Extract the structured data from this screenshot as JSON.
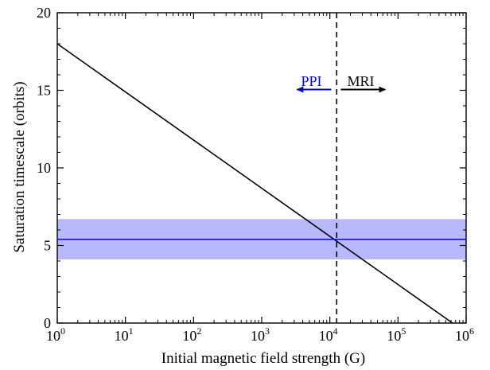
{
  "chart_data": {
    "type": "line",
    "title": "",
    "xlabel": "Initial magnetic field strength (G)",
    "ylabel": "Saturation timescale (orbits)",
    "xscale": "log",
    "xlim": [
      1,
      1000000
    ],
    "ylim": [
      0,
      20
    ],
    "grid": false,
    "x_tick_labels": [
      {
        "base": "10",
        "exp": "0"
      },
      {
        "base": "10",
        "exp": "1"
      },
      {
        "base": "10",
        "exp": "2"
      },
      {
        "base": "10",
        "exp": "3"
      },
      {
        "base": "10",
        "exp": "4"
      },
      {
        "base": "10",
        "exp": "5"
      },
      {
        "base": "10",
        "exp": "6"
      }
    ],
    "y_tick_labels": [
      "0",
      "5",
      "10",
      "15",
      "20"
    ],
    "series": [
      {
        "type": "line",
        "color": "#000000",
        "x": [
          1,
          631000
        ],
        "y": [
          18.0,
          0.0
        ]
      },
      {
        "type": "hline",
        "color": "#0000ee",
        "y": 5.4,
        "band": [
          4.1,
          6.7
        ],
        "band_color": "#b8b8ff"
      }
    ],
    "vline": {
      "x": 12600,
      "style": "dashed",
      "color": "#000000"
    },
    "annotations": [
      {
        "text": "PPI",
        "x": 3000,
        "y": 15.6,
        "color": "#0000cc",
        "arrow": "left",
        "arrow_from": 10500,
        "arrow_to": 3300
      },
      {
        "text": "MRI",
        "x": 30000,
        "y": 15.6,
        "color": "#000000",
        "arrow": "right",
        "arrow_from": 14500,
        "arrow_to": 65000
      }
    ]
  }
}
